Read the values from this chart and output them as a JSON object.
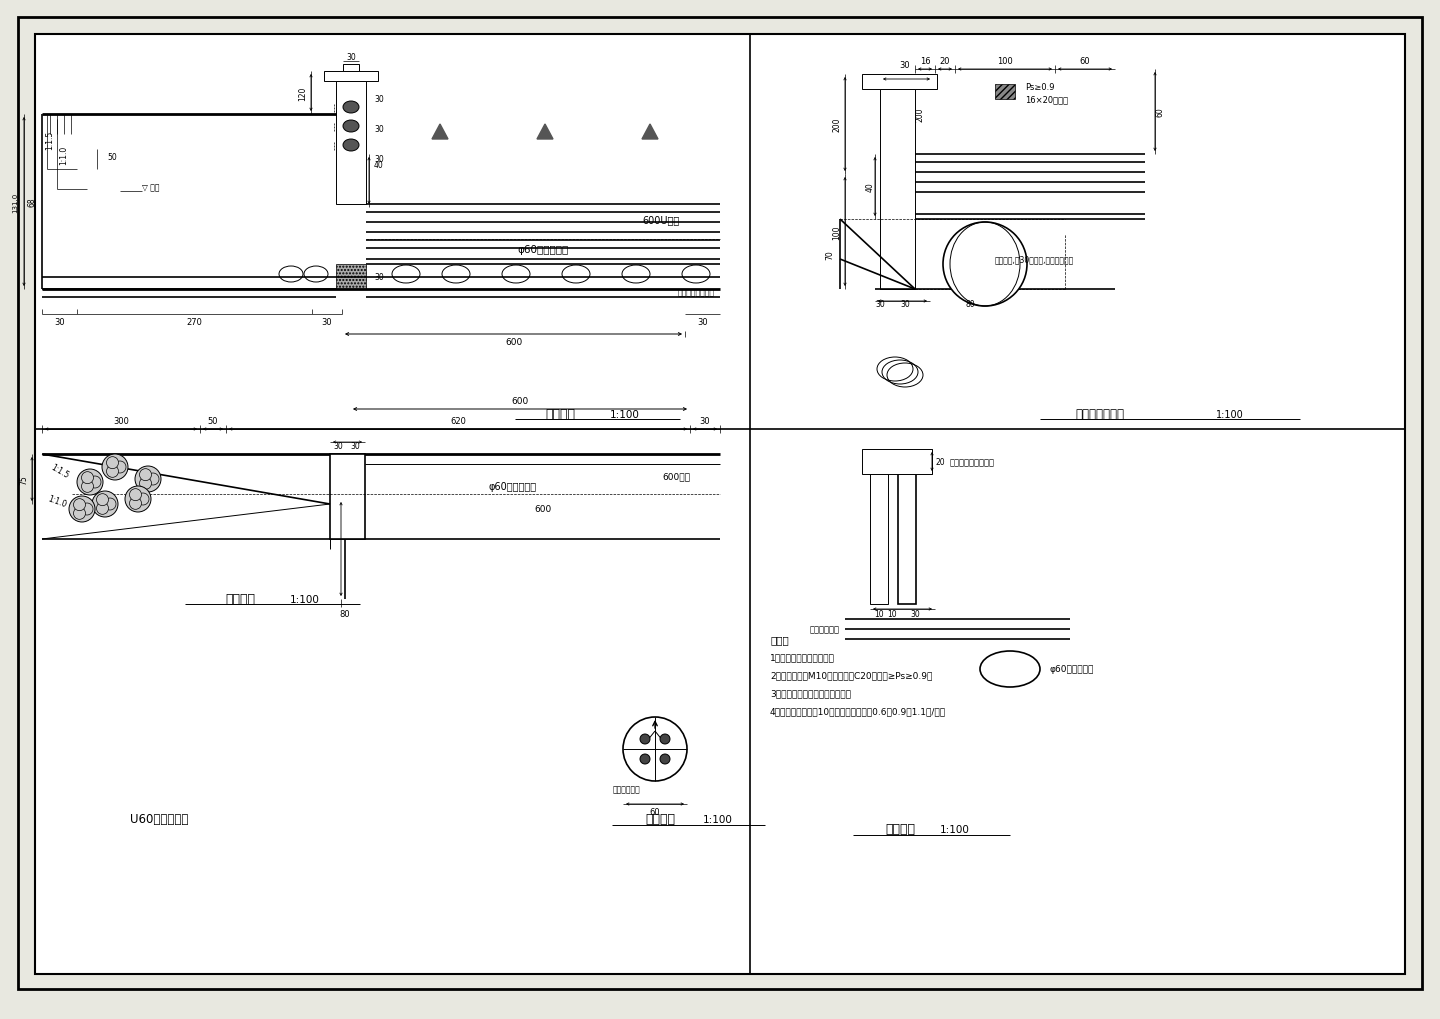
{
  "bg_color": "#ffffff",
  "line_color": "#000000",
  "title_main": "U60分水闸工程",
  "section_titles": {
    "longitudinal": "纵剖面图",
    "half_plan": "半平面图",
    "pipe_detail": "管身详图",
    "upstream_downstream": "上下游正立面图",
    "gate_slot": "门槽详图"
  },
  "scale": "1:100",
  "labels": {
    "pipe": "φ60预应力涵管",
    "channel": "600U型槽",
    "channel2": "600型槽",
    "stop_water": "橡皮内用嵌缝止水",
    "grease": "口型钢槽,每30米分缝,缝内灌注油膏",
    "pressure": "Ps≥0.9",
    "press_block": "16×20垫压顶",
    "precast": "预制自密合柱安装孔",
    "waterproof": "水膨胀橡皮光",
    "triangle_survey": "二级三角地磁"
  },
  "notes": [
    "说明：",
    "1、本图尺寸单位为厘米。",
    "2、水泥砂浆为M10，砼强土为C20，抗渗≥Ps≥0.9。",
    "3、预列构件及台阶孔另见施图。",
    "4、上下游水位差为10厘米，其过流量为0.6、0.9、1.1方/秒。"
  ],
  "paper_bg": "#e8e8e0",
  "draw_bg": "#ffffff",
  "border_lw": 1.5,
  "section_divider_lw": 1.0
}
